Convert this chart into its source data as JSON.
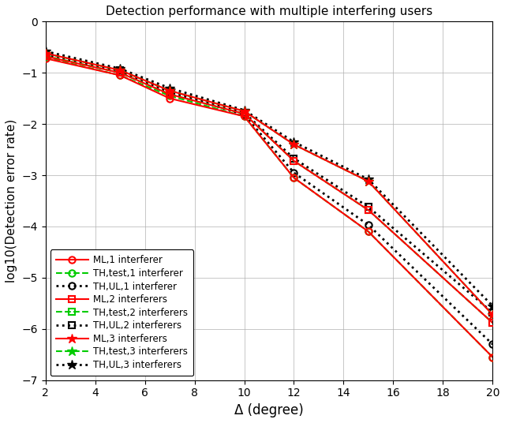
{
  "title": "Detection performance with multiple interfering users",
  "xlabel": "Δ (degree)",
  "ylabel": "log10(Detection error rate)",
  "xlim": [
    2,
    20
  ],
  "ylim": [
    -7,
    0
  ],
  "xticks": [
    2,
    4,
    6,
    8,
    10,
    12,
    14,
    16,
    18,
    20
  ],
  "yticks": [
    0,
    -1,
    -2,
    -3,
    -4,
    -5,
    -6,
    -7
  ],
  "x": [
    2,
    5,
    7,
    10,
    12,
    15,
    20
  ],
  "ML1": [
    -0.72,
    -1.05,
    -1.5,
    -1.85,
    -3.05,
    -4.1,
    -6.55
  ],
  "TH1": [
    -0.7,
    -1.05,
    -1.45,
    -1.85,
    -3.05,
    -4.1,
    -6.55
  ],
  "THUL1": [
    -0.65,
    -0.98,
    -1.38,
    -1.82,
    -2.95,
    -3.97,
    -6.3
  ],
  "ML2": [
    -0.68,
    -1.0,
    -1.42,
    -1.8,
    -2.72,
    -3.68,
    -5.88
  ],
  "TH2": [
    -0.67,
    -1.0,
    -1.42,
    -1.8,
    -2.72,
    -3.68,
    -5.88
  ],
  "THUL2": [
    -0.62,
    -0.95,
    -1.35,
    -1.78,
    -2.67,
    -3.62,
    -5.68
  ],
  "ML3": [
    -0.62,
    -0.95,
    -1.35,
    -1.75,
    -2.4,
    -3.12,
    -5.72
  ],
  "TH3": [
    -0.62,
    -0.95,
    -1.35,
    -1.75,
    -2.4,
    -3.12,
    -5.72
  ],
  "THUL3": [
    -0.58,
    -0.92,
    -1.3,
    -1.73,
    -2.35,
    -3.08,
    -5.55
  ],
  "color_red": "#ff0000",
  "color_green": "#00cc00",
  "color_black": "#000000",
  "bg_color": "#ffffff"
}
